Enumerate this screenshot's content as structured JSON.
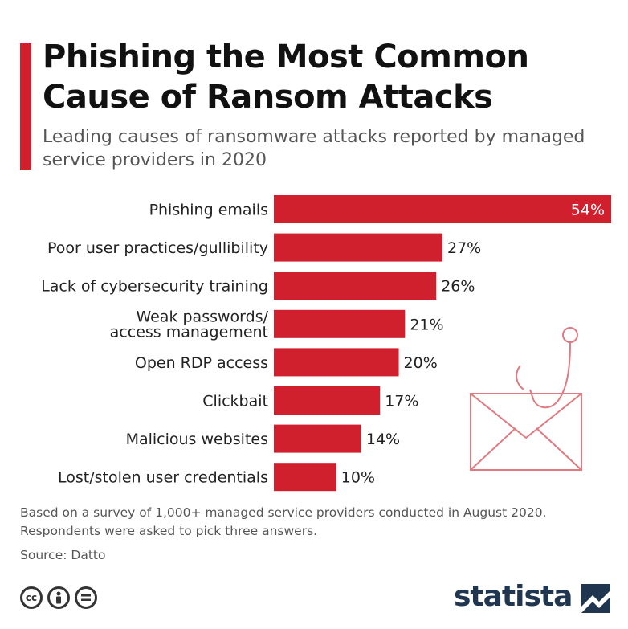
{
  "header": {
    "title": "Phishing the Most Common Cause of Ransom Attacks",
    "subtitle": "Leading causes of ransomware attacks reported by managed service providers in 2020"
  },
  "chart_data": {
    "type": "bar",
    "orientation": "horizontal",
    "categories": [
      [
        "Phishing emails"
      ],
      [
        "Poor user practices/gullibility"
      ],
      [
        "Lack of cybersecurity training"
      ],
      [
        "Weak passwords/",
        "access management"
      ],
      [
        "Open RDP access"
      ],
      [
        "Clickbait"
      ],
      [
        "Malicious websites"
      ],
      [
        "Lost/stolen user credentials"
      ]
    ],
    "values": [
      54,
      27,
      26,
      21,
      20,
      17,
      14,
      10
    ],
    "value_labels": [
      "54%",
      "27%",
      "26%",
      "21%",
      "20%",
      "17%",
      "14%",
      "10%"
    ],
    "xlim": [
      0,
      54
    ],
    "grid": false,
    "bar_color": "#d0202e"
  },
  "footer": {
    "note": "Based on a survey of 1,000+ managed service providers conducted in August 2020. Respondents were asked to pick three answers.",
    "source": "Source: Datto",
    "brand": "statista",
    "license_icons": [
      "cc-icon",
      "by-icon",
      "nd-icon"
    ]
  },
  "colors": {
    "accent": "#d0202e",
    "brand": "#1f3550",
    "illustration": "#e07a80"
  }
}
